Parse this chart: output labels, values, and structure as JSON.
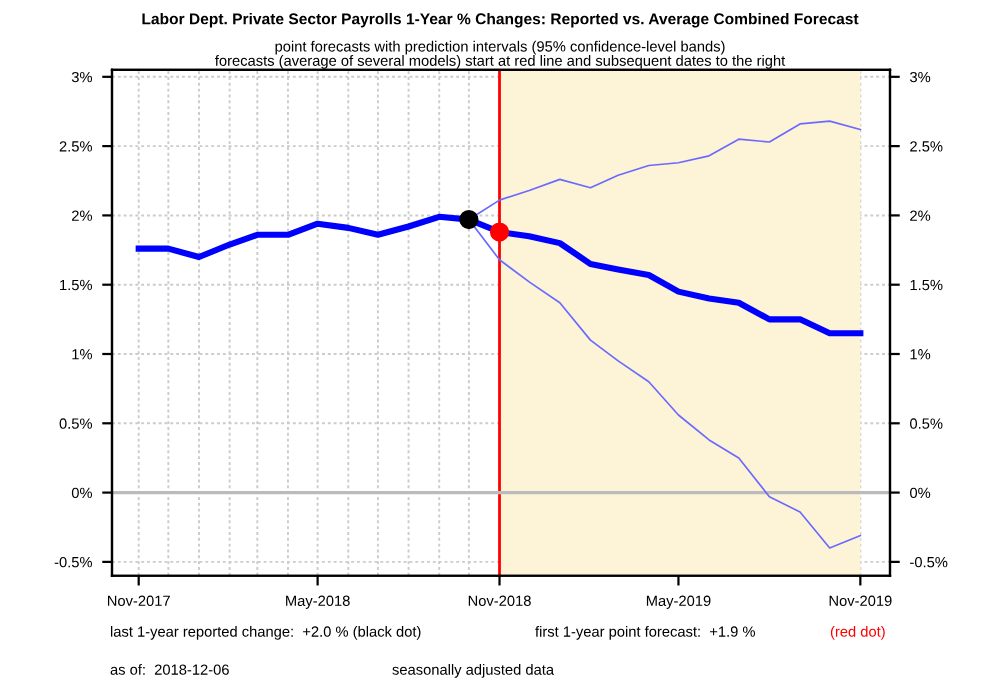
{
  "chart_data": {
    "type": "line",
    "title": "Labor Dept. Private Sector Payrolls 1-Year % Changes: Reported vs. Average Combined Forecast",
    "subtitle": "point forecasts with prediction intervals (95% confidence-level bands)\nforecasts (average of several models) start at red line and subsequent dates to the right",
    "series": [
      {
        "color": "#0000ff",
        "x": [
          "2017-11",
          "2017-12",
          "2018-01",
          "2018-02",
          "2018-03",
          "2018-04",
          "2018-05",
          "2018-06",
          "2018-07",
          "2018-08",
          "2018-09",
          "2018-10"
        ],
        "values": [
          1.76,
          1.76,
          1.7,
          1.79,
          1.86,
          1.86,
          1.94,
          1.91,
          1.86,
          1.92,
          1.99,
          1.97
        ]
      },
      {
        "color": "#6a6aff",
        "x": [
          "2018-10",
          "2018-11",
          "2018-12",
          "2019-01",
          "2019-02",
          "2019-03",
          "2019-04",
          "2019-05",
          "2019-06",
          "2019-07",
          "2019-08",
          "2019-09",
          "2019-10",
          "2019-11"
        ],
        "values": [
          1.97,
          2.11,
          2.18,
          2.26,
          2.2,
          2.29,
          2.36,
          2.38,
          2.43,
          2.55,
          2.53,
          2.66,
          2.68,
          2.62
        ]
      },
      {
        "color": "#6a6aff",
        "x": [
          "2018-10",
          "2018-11",
          "2018-12",
          "2019-01",
          "2019-02",
          "2019-03",
          "2019-04",
          "2019-05",
          "2019-06",
          "2019-07",
          "2019-08",
          "2019-09",
          "2019-10",
          "2019-11"
        ],
        "values": [
          1.97,
          1.68,
          1.52,
          1.37,
          1.1,
          0.95,
          0.8,
          0.56,
          0.38,
          0.25,
          -0.03,
          -0.14,
          -0.4,
          -0.31
        ]
      },
      {
        "color": "#0000ff",
        "x": [
          "2018-10",
          "2018-11",
          "2018-12",
          "2019-01",
          "2019-02",
          "2019-03",
          "2019-04",
          "2019-05",
          "2019-06",
          "2019-07",
          "2019-08",
          "2019-09",
          "2019-10",
          "2019-11"
        ],
        "values": [
          1.97,
          1.88,
          1.85,
          1.8,
          1.65,
          1.61,
          1.57,
          1.45,
          1.4,
          1.37,
          1.25,
          1.25,
          1.15,
          1.15
        ]
      },
      {
        "type": "scatter",
        "color": "#000000",
        "x": [
          "2018-10"
        ],
        "values": [
          1.97
        ]
      },
      {
        "type": "scatter",
        "color": "#ff0000",
        "x": [
          "2018-11"
        ],
        "values": [
          1.88
        ]
      }
    ],
    "xlim": [
      "2017-10-05",
      "2019-12-01"
    ],
    "xticks": [
      {
        "value": "2017-11",
        "label": "Nov-2017"
      },
      {
        "value": "2018-05",
        "label": "May-2018"
      },
      {
        "value": "2018-11",
        "label": "Nov-2018"
      },
      {
        "value": "2019-05",
        "label": "May-2019"
      },
      {
        "value": "2019-11",
        "label": "Nov-2019"
      }
    ],
    "ylim": [
      -0.6,
      3.05
    ],
    "yticks": [
      {
        "value": -0.5,
        "label": "-0.5%"
      },
      {
        "value": 0,
        "label": "0%"
      },
      {
        "value": 0.5,
        "label": "0.5%"
      },
      {
        "value": 1,
        "label": "1%"
      },
      {
        "value": 1.5,
        "label": "1.5%"
      },
      {
        "value": 2,
        "label": "2%"
      },
      {
        "value": 2.5,
        "label": "2.5%"
      },
      {
        "value": 3,
        "label": "3%"
      }
    ],
    "y2lim": [
      -0.6,
      3.05
    ],
    "y2ticks": [
      {
        "value": -0.5,
        "label": "-0.5%"
      },
      {
        "value": 0,
        "label": "0%"
      },
      {
        "value": 0.5,
        "label": "0.5%"
      },
      {
        "value": 1,
        "label": "1%"
      },
      {
        "value": 1.5,
        "label": "1.5%"
      },
      {
        "value": 2,
        "label": "2%"
      },
      {
        "value": 2.5,
        "label": "2.5%"
      },
      {
        "value": 3,
        "label": "3%"
      }
    ],
    "ref_lines": [
      {
        "axis": "x",
        "value": "2018-11",
        "color": "#ff0000"
      },
      {
        "axis": "y",
        "value": 0,
        "color": "#bbbbbb"
      }
    ],
    "bands": [
      {
        "axis": "x",
        "from": "2018-11",
        "to": "2019-11",
        "color": "#fdf3d6"
      }
    ],
    "grid": true,
    "annotations": [
      "last 1-year reported change:  +2.0 % (black dot)",
      "first 1-year point forecast:  +1.9 %",
      "(red dot)",
      "as of:  2018-12-06",
      "seasonally adjusted data"
    ]
  }
}
